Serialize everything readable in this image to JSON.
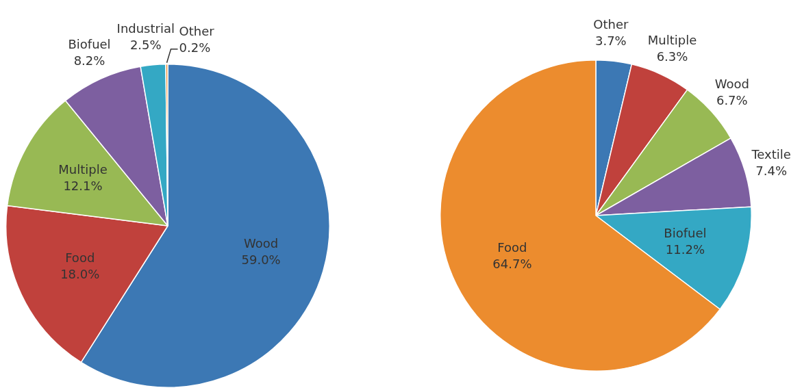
{
  "chart_data": [
    {
      "type": "pie",
      "categories": [
        "Wood",
        "Food",
        "Multiple",
        "Biofuel",
        "Industrial",
        "Other"
      ],
      "values": [
        59.0,
        18.0,
        12.1,
        8.2,
        2.5,
        0.2
      ],
      "colors": [
        "#3c78b4",
        "#c0413c",
        "#98b954",
        "#7d5fa0",
        "#34a8c4",
        "#ec8c2e"
      ],
      "value_labels": [
        "59.0%",
        "18.0%",
        "12.1%",
        "8.2%",
        "2.5%",
        "0.2%"
      ],
      "legend": false
    },
    {
      "type": "pie",
      "categories": [
        "Other",
        "Multiple",
        "Wood",
        "Textile",
        "Biofuel",
        "Food"
      ],
      "values": [
        3.7,
        6.3,
        6.7,
        7.4,
        11.2,
        64.7
      ],
      "colors": [
        "#3c78b4",
        "#c0413c",
        "#98b954",
        "#7d5fa0",
        "#34a8c4",
        "#ec8c2e"
      ],
      "value_labels": [
        "3.7%",
        "6.3%",
        "6.7%",
        "7.4%",
        "11.2%",
        "64.7%"
      ],
      "legend": false
    }
  ]
}
